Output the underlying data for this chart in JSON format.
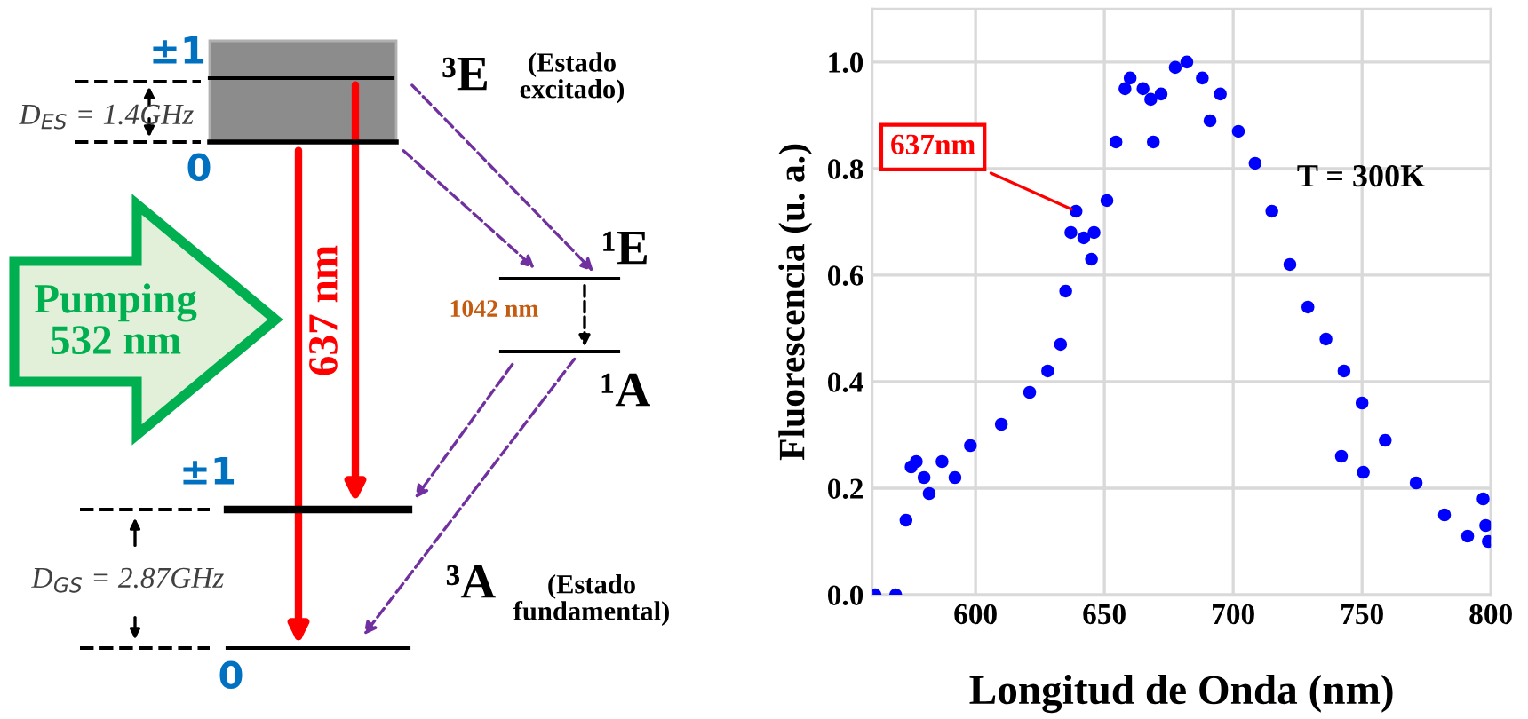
{
  "chart_data": [
    {
      "type": "other",
      "annotations": [
        "±1",
        "0",
        "D$_{ES}$ = 1.4GHz",
        "³E",
        "(Estado\nexcitado)",
        "Pumping\n532 nm",
        "637 nm",
        "¹E",
        "1042 nm",
        "¹A",
        "±1",
        "D$_{GS}$ = 2.87GHz",
        "³A",
        "(Estado\nfundamental)",
        "0"
      ]
    },
    {
      "type": "scatter",
      "xlabel": "Longitud de Onda (nm)",
      "ylabel": "Fluorescencia (u. a.)",
      "x": [
        561,
        569,
        573,
        575,
        577,
        580,
        582,
        587,
        592,
        598,
        610,
        621,
        628,
        633,
        635,
        637,
        639,
        642,
        645,
        646,
        651,
        654.5,
        658,
        660,
        665,
        668,
        669,
        672,
        677.5,
        682,
        688,
        691,
        695,
        702,
        708.5,
        715,
        722,
        729,
        736,
        742,
        743,
        750,
        750.5,
        759,
        771,
        782,
        791,
        797,
        798,
        799
      ],
      "series": [
        {
          "color": "#0000ff",
          "values": [
            0,
            0,
            0.14,
            0.24,
            0.25,
            0.22,
            0.19,
            0.25,
            0.22,
            0.28,
            0.32,
            0.38,
            0.42,
            0.47,
            0.57,
            0.68,
            0.72,
            0.67,
            0.63,
            0.68,
            0.74,
            0.85,
            0.95,
            0.97,
            0.95,
            0.93,
            0.85,
            0.94,
            0.99,
            1.0,
            0.97,
            0.89,
            0.94,
            0.87,
            0.81,
            0.72,
            0.62,
            0.54,
            0.48,
            0.26,
            0.42,
            0.36,
            0.23,
            0.29,
            0.21,
            0.15,
            0.11,
            0.18,
            0.13,
            0.1
          ]
        }
      ],
      "marker": "circle",
      "grid": true,
      "xlim": [
        560,
        800
      ],
      "xticks": [
        600,
        650,
        700,
        750,
        800
      ],
      "ylim": [
        0,
        1.1
      ],
      "yticks": [
        {
          "value": 0,
          "label": "0.0"
        },
        {
          "value": 0.2,
          "label": "0.2"
        },
        {
          "value": 0.4,
          "label": "0.4"
        },
        {
          "value": 0.6,
          "label": "0.6"
        },
        {
          "value": 0.8,
          "label": "0.8"
        },
        {
          "value": 1.0,
          "label": "1.0"
        }
      ],
      "annotations": [
        {
          "text": "637nm",
          "x": 639,
          "y": 0.72
        },
        "T = 300K"
      ]
    }
  ]
}
